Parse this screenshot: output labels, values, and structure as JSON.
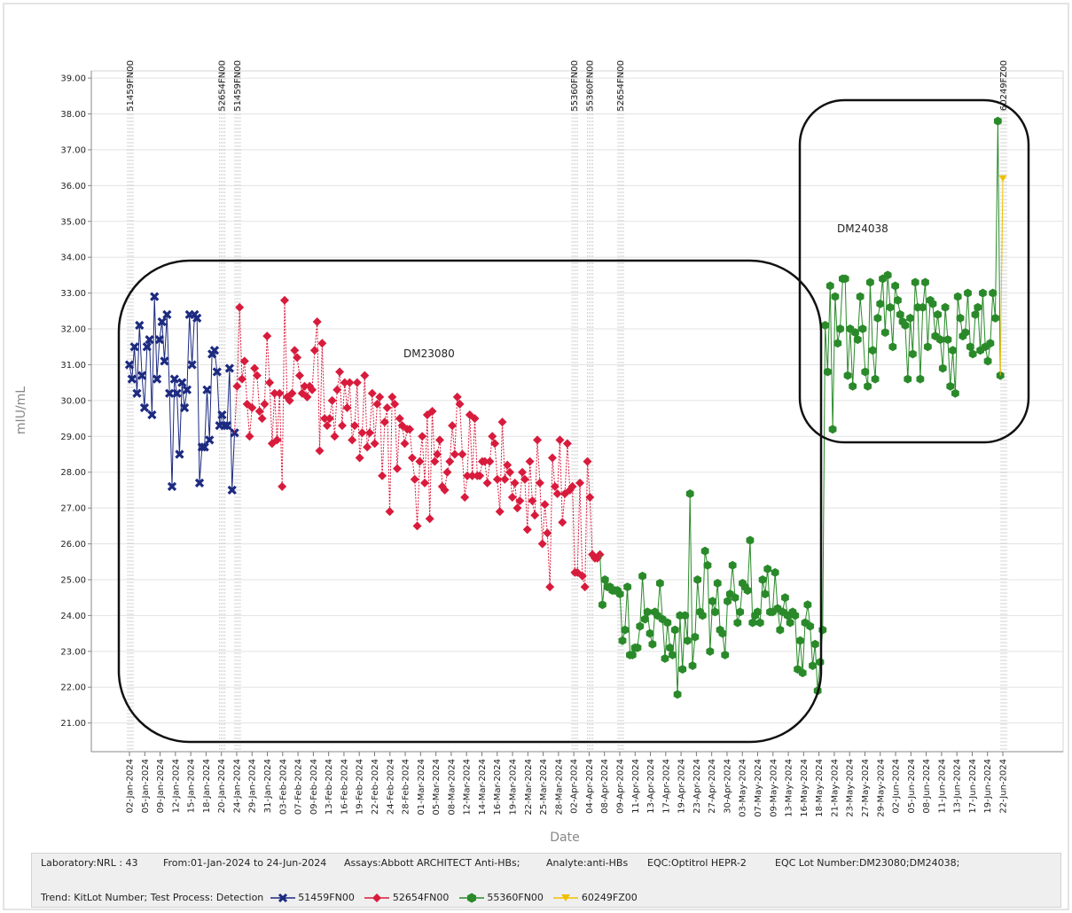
{
  "chart_data": {
    "type": "line",
    "xlabel": "Date",
    "ylabel": "mIU/mL",
    "ylim": [
      20.2,
      39.2
    ],
    "yticks": [
      21,
      22,
      23,
      24,
      25,
      26,
      27,
      28,
      29,
      30,
      31,
      32,
      33,
      34,
      35,
      36,
      37,
      38,
      39
    ],
    "ytick_labels": [
      "21.00",
      "22.00",
      "23.00",
      "24.00",
      "25.00",
      "26.00",
      "27.00",
      "28.00",
      "29.00",
      "30.00",
      "31.00",
      "32.00",
      "33.00",
      "34.00",
      "35.00",
      "36.00",
      "37.00",
      "38.00",
      "39.00"
    ],
    "x_tick_labels": [
      "02-Jan-2024",
      "05-Jan-2024",
      "09-Jan-2024",
      "12-Jan-2024",
      "15-Jan-2024",
      "18-Jan-2024",
      "20-Jan-2024",
      "24-Jan-2024",
      "29-Jan-2024",
      "31-Jan-2024",
      "03-Feb-2024",
      "07-Feb-2024",
      "09-Feb-2024",
      "13-Feb-2024",
      "16-Feb-2024",
      "19-Feb-2024",
      "22-Feb-2024",
      "24-Feb-2024",
      "28-Feb-2024",
      "01-Mar-2024",
      "05-Mar-2024",
      "08-Mar-2024",
      "12-Mar-2024",
      "14-Mar-2024",
      "16-Mar-2024",
      "19-Mar-2024",
      "22-Mar-2024",
      "25-Mar-2024",
      "28-Mar-2024",
      "02-Apr-2024",
      "04-Apr-2024",
      "08-Apr-2024",
      "09-Apr-2024",
      "11-Apr-2024",
      "13-Apr-2024",
      "17-Apr-2024",
      "19-Apr-2024",
      "23-Apr-2024",
      "27-Apr-2024",
      "30-Apr-2024",
      "03-May-2024",
      "07-May-2024",
      "09-May-2024",
      "13-May-2024",
      "16-May-2024",
      "18-May-2024",
      "21-May-2024",
      "23-May-2024",
      "27-May-2024",
      "29-May-2024",
      "02-Jun-2024",
      "05-Jun-2024",
      "08-Jun-2024",
      "11-Jun-2024",
      "13-Jun-2024",
      "17-Jun-2024",
      "19-Jun-2024",
      "22-Jun-2024"
    ],
    "kit_lot_changes": [
      {
        "index": 0,
        "label": "51459FN00"
      },
      {
        "index": 6,
        "label": "52654FN00"
      },
      {
        "index": 7,
        "label": "51459FN00"
      },
      {
        "index": 29,
        "label": "55360FN00"
      },
      {
        "index": 30,
        "label": "55360FN00"
      },
      {
        "index": 32,
        "label": "52654FN00"
      },
      {
        "index": 57,
        "label": "60249FZ00"
      }
    ],
    "annotations": [
      "DM23080",
      "DM24038"
    ],
    "series": [
      {
        "name": "51459FN00",
        "color": "#1c2a80",
        "marker": "cross",
        "values": [
          31.0,
          30.6,
          31.5,
          30.2,
          32.1,
          30.7,
          29.8,
          31.5,
          31.7,
          29.6,
          32.9,
          30.6,
          31.7,
          32.2,
          31.1,
          32.4,
          30.2,
          27.6,
          30.6,
          30.2,
          28.5,
          30.5,
          29.8,
          30.3,
          32.4,
          31.0,
          32.4,
          32.3,
          27.7,
          28.7,
          28.7,
          30.3,
          28.9,
          31.3,
          31.4,
          30.8,
          29.3,
          29.6,
          29.3,
          29.3,
          30.9,
          27.5,
          29.1
        ]
      },
      {
        "name": "52654FN00",
        "color": "#d81b3c",
        "marker": "diamond",
        "values": [
          30.4,
          32.6,
          30.6,
          31.1,
          29.9,
          29.0,
          29.8,
          30.9,
          30.7,
          29.7,
          29.5,
          29.9,
          31.8,
          30.5,
          28.8,
          30.2,
          28.9,
          30.2,
          27.6,
          32.8,
          30.1,
          30.0,
          30.2,
          31.4,
          31.2,
          30.7,
          30.2,
          30.4,
          30.1,
          30.4,
          30.3,
          31.4,
          32.2,
          28.6,
          31.6,
          29.5,
          29.3,
          29.5,
          30.0,
          29.0,
          30.3,
          30.8,
          29.3,
          30.5,
          29.8,
          30.5,
          28.9,
          29.3,
          30.5,
          28.4,
          29.1,
          30.7,
          28.7,
          29.1,
          30.2,
          28.8,
          29.9,
          30.1,
          27.9,
          29.4,
          29.8,
          26.9,
          30.1,
          29.9,
          28.1,
          29.5,
          29.3,
          28.8,
          29.2,
          29.2,
          28.4,
          27.8,
          26.5,
          28.3,
          29.0,
          27.7,
          29.6,
          26.7,
          29.7,
          28.3,
          28.5,
          28.9,
          27.6,
          27.5,
          28.0,
          28.3,
          29.3,
          28.5,
          30.1,
          29.9,
          28.5,
          27.3,
          27.9,
          29.6,
          27.9,
          29.5,
          27.9,
          27.9,
          28.3,
          28.3,
          27.7,
          28.3,
          29.0,
          28.8,
          27.8,
          26.9,
          29.4,
          27.8,
          28.2,
          28.0,
          27.3,
          27.7,
          27.0,
          27.2,
          28.0,
          27.8,
          26.4,
          28.3,
          27.2,
          26.8,
          28.9,
          27.7,
          26.0,
          27.1,
          26.3,
          24.8,
          28.4,
          27.6,
          27.4,
          28.9,
          26.6,
          27.4,
          28.8,
          27.5,
          27.6,
          25.2,
          25.2,
          27.7,
          25.1,
          24.8,
          28.3,
          27.3,
          25.7,
          25.6,
          25.6,
          25.7
        ]
      },
      {
        "name": "55360FN00",
        "color": "#2a8a2a",
        "marker": "hexagon",
        "values": [
          24.3,
          25.0,
          24.8,
          24.8,
          24.7,
          24.7,
          24.7,
          24.6,
          23.3,
          23.6,
          24.8,
          22.9,
          22.9,
          23.1,
          23.1,
          23.7,
          25.1,
          23.9,
          24.1,
          23.5,
          23.2,
          24.1,
          24.0,
          24.9,
          23.9,
          22.8,
          23.8,
          23.1,
          22.9,
          23.6,
          21.8,
          24.0,
          22.5,
          24.0,
          23.3,
          27.4,
          22.6,
          23.4,
          25.0,
          24.1,
          24.0,
          25.8,
          25.4,
          23.0,
          24.4,
          24.1,
          24.9,
          23.6,
          23.5,
          22.9,
          24.4,
          24.6,
          25.4,
          24.5,
          23.8,
          24.1,
          24.9,
          24.8,
          24.7,
          26.1,
          23.8,
          24.0,
          24.1,
          23.8,
          25.0,
          24.6,
          25.3,
          24.1,
          24.1,
          25.2,
          24.2,
          23.6,
          24.1,
          24.5,
          24.0,
          23.8,
          24.1,
          24.0,
          22.5,
          23.3,
          22.4,
          23.8,
          24.3,
          23.7,
          22.6,
          23.2,
          21.9,
          22.7,
          23.6,
          32.1,
          30.8,
          33.2,
          29.2,
          32.9,
          31.6,
          32.0,
          33.4,
          33.4,
          30.7,
          32.0,
          30.4,
          31.9,
          31.7,
          32.9,
          32.0,
          30.8,
          30.4,
          33.3,
          31.4,
          30.6,
          32.3,
          32.7,
          33.4,
          31.9,
          33.5,
          32.6,
          31.5,
          33.2,
          32.8,
          32.4,
          32.2,
          32.1,
          30.6,
          32.3,
          31.3,
          33.3,
          32.6,
          30.6,
          32.6,
          33.3,
          31.5,
          32.8,
          32.7,
          31.8,
          32.4,
          31.7,
          30.9,
          32.6,
          31.7,
          30.4,
          31.4,
          30.2,
          32.9,
          32.3,
          31.8,
          31.9,
          33.0,
          31.5,
          31.3,
          32.4,
          32.6,
          31.4,
          33.0,
          31.5,
          31.1,
          31.6,
          33.0,
          32.3,
          37.8,
          30.7
        ]
      },
      {
        "name": "60249FZ00",
        "color": "#f0c000",
        "marker": "triangle-down",
        "values": [
          36.2
        ]
      }
    ]
  },
  "footer": {
    "laboratory": "Laboratory:NRL : 43",
    "period": "From:01-Jan-2024 to 24-Jun-2024",
    "assays": "Assays:Abbott ARCHITECT Anti-HBs;",
    "analyte": "Analyte:anti-HBs",
    "eqc": "EQC:Optitrol HEPR-2",
    "eqc_lot": "EQC Lot Number:DM23080;DM24038;",
    "trend": "Trend: KitLot Number; Test Process: Detection"
  }
}
